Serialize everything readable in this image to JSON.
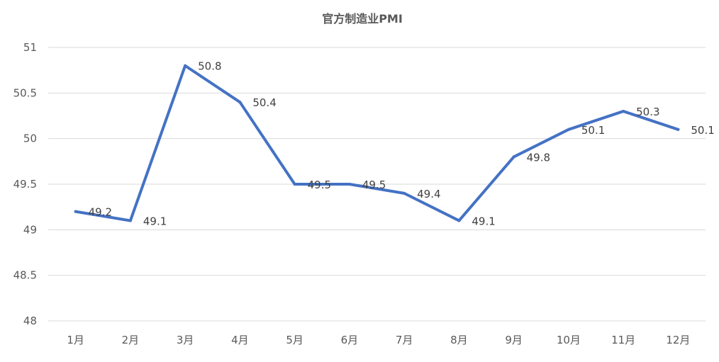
{
  "chart_data": {
    "type": "line",
    "title": "官方制造业PMI",
    "xlabel": "",
    "ylabel": "",
    "categories": [
      "1月",
      "2月",
      "3月",
      "4月",
      "5月",
      "6月",
      "7月",
      "8月",
      "9月",
      "10月",
      "11月",
      "12月"
    ],
    "series": [
      {
        "values": [
          49.2,
          49.1,
          50.8,
          50.4,
          49.5,
          49.5,
          49.4,
          49.1,
          49.8,
          50.1,
          50.3,
          50.1
        ],
        "data_labels": [
          "49.2",
          "49.1",
          "50.8",
          "50.4",
          "49.5",
          "49.5",
          "49.4",
          "49.1",
          "49.8",
          "50.1",
          "50.3",
          "50.1"
        ],
        "color": "#4472c4"
      }
    ],
    "ylim": [
      48,
      51
    ],
    "yticks": [
      48,
      48.5,
      49,
      49.5,
      50,
      50.5,
      51
    ],
    "ytick_labels": [
      "48",
      "48.5",
      "49",
      "49.5",
      "50",
      "50.5",
      "51"
    ],
    "grid": true,
    "legend": "none"
  }
}
